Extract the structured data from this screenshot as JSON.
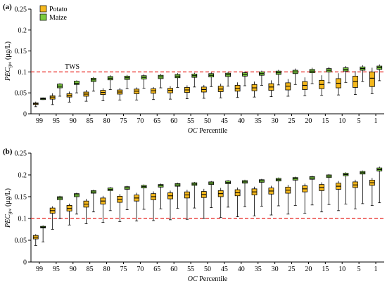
{
  "chart_data": [
    {
      "type": "box",
      "panel_label": "(a)",
      "ylabel_main": "PEC",
      "ylabel_sub": "gw",
      "ylabel_unit": "(μg/L)",
      "xlabel_main": "OC",
      "xlabel_rest": " Percentile",
      "ylim": [
        0,
        0.25
      ],
      "yticks": [
        "0",
        "0.05",
        "0.1",
        "0.15",
        "0.2",
        "0.25"
      ],
      "ytick_values": [
        0,
        0.05,
        0.1,
        0.15,
        0.2,
        0.25
      ],
      "categories": [
        "99",
        "95",
        "90",
        "85",
        "80",
        "75",
        "70",
        "65",
        "60",
        "55",
        "50",
        "45",
        "40",
        "35",
        "30",
        "25",
        "20",
        "15",
        "10",
        "5",
        "1"
      ],
      "threshold": {
        "value": 0.1,
        "label": "TWS",
        "color": "#e8231f"
      },
      "legend": {
        "position": "top-left"
      },
      "series": [
        {
          "name": "Potato",
          "color": "#f5b81c",
          "boxes": [
            [
              0.017,
              0.022,
              0.024,
              0.026,
              0.029
            ],
            [
              0.022,
              0.035,
              0.04,
              0.043,
              0.049
            ],
            [
              0.028,
              0.04,
              0.044,
              0.048,
              0.053
            ],
            [
              0.03,
              0.042,
              0.047,
              0.052,
              0.057
            ],
            [
              0.031,
              0.046,
              0.051,
              0.056,
              0.061
            ],
            [
              0.033,
              0.047,
              0.052,
              0.057,
              0.062
            ],
            [
              0.033,
              0.048,
              0.054,
              0.059,
              0.063
            ],
            [
              0.034,
              0.049,
              0.055,
              0.06,
              0.064
            ],
            [
              0.035,
              0.05,
              0.056,
              0.061,
              0.066
            ],
            [
              0.036,
              0.051,
              0.057,
              0.063,
              0.068
            ],
            [
              0.037,
              0.052,
              0.058,
              0.064,
              0.069
            ],
            [
              0.038,
              0.053,
              0.059,
              0.066,
              0.072
            ],
            [
              0.039,
              0.054,
              0.061,
              0.068,
              0.075
            ],
            [
              0.04,
              0.055,
              0.062,
              0.07,
              0.077
            ],
            [
              0.041,
              0.056,
              0.064,
              0.072,
              0.08
            ],
            [
              0.042,
              0.057,
              0.066,
              0.074,
              0.083
            ],
            [
              0.043,
              0.058,
              0.068,
              0.077,
              0.087
            ],
            [
              0.044,
              0.06,
              0.07,
              0.08,
              0.092
            ],
            [
              0.045,
              0.062,
              0.073,
              0.084,
              0.097
            ],
            [
              0.046,
              0.063,
              0.077,
              0.09,
              0.102
            ],
            [
              0.048,
              0.065,
              0.085,
              0.1,
              0.11
            ]
          ]
        },
        {
          "name": "Maize",
          "color": "#7ccb3f",
          "boxes": [
            [
              0.034,
              0.034,
              0.036,
              0.038,
              0.039
            ],
            [
              0.042,
              0.062,
              0.066,
              0.071,
              0.073
            ],
            [
              0.05,
              0.07,
              0.073,
              0.078,
              0.08
            ],
            [
              0.054,
              0.077,
              0.081,
              0.085,
              0.088
            ],
            [
              0.058,
              0.081,
              0.085,
              0.089,
              0.092
            ],
            [
              0.06,
              0.082,
              0.086,
              0.09,
              0.093
            ],
            [
              0.061,
              0.083,
              0.087,
              0.091,
              0.094
            ],
            [
              0.062,
              0.084,
              0.088,
              0.092,
              0.095
            ],
            [
              0.063,
              0.086,
              0.09,
              0.094,
              0.097
            ],
            [
              0.064,
              0.087,
              0.091,
              0.095,
              0.098
            ],
            [
              0.065,
              0.088,
              0.092,
              0.096,
              0.099
            ],
            [
              0.066,
              0.089,
              0.093,
              0.097,
              0.1
            ],
            [
              0.067,
              0.09,
              0.094,
              0.098,
              0.101
            ],
            [
              0.068,
              0.092,
              0.096,
              0.1,
              0.103
            ],
            [
              0.069,
              0.094,
              0.098,
              0.102,
              0.105
            ],
            [
              0.07,
              0.096,
              0.1,
              0.104,
              0.108
            ],
            [
              0.072,
              0.098,
              0.102,
              0.106,
              0.11
            ],
            [
              0.074,
              0.1,
              0.104,
              0.108,
              0.112
            ],
            [
              0.075,
              0.102,
              0.106,
              0.11,
              0.114
            ],
            [
              0.077,
              0.104,
              0.108,
              0.112,
              0.116
            ],
            [
              0.079,
              0.106,
              0.11,
              0.114,
              0.118
            ]
          ]
        }
      ]
    },
    {
      "type": "box",
      "panel_label": "(b)",
      "ylabel_main": "PEC",
      "ylabel_sub": "gw",
      "ylabel_unit": "(μg/L)",
      "xlabel_main": "OC",
      "xlabel_rest": " Percentile",
      "ylim": [
        0,
        0.25
      ],
      "yticks": [
        "0",
        "0.05",
        "0.1",
        "0.15",
        "0.2",
        "0.25"
      ],
      "ytick_values": [
        0,
        0.05,
        0.1,
        0.15,
        0.2,
        0.25
      ],
      "categories": [
        "99",
        "95",
        "90",
        "85",
        "80",
        "75",
        "70",
        "65",
        "60",
        "55",
        "50",
        "45",
        "40",
        "35",
        "30",
        "25",
        "20",
        "15",
        "10",
        "5",
        "1"
      ],
      "threshold": {
        "value": 0.1,
        "color": "#e8231f"
      },
      "series": [
        {
          "name": "Potato",
          "color": "#f5b81c",
          "boxes": [
            [
              0.038,
              0.053,
              0.057,
              0.061,
              0.064
            ],
            [
              0.075,
              0.112,
              0.118,
              0.124,
              0.128
            ],
            [
              0.085,
              0.117,
              0.123,
              0.13,
              0.134
            ],
            [
              0.088,
              0.126,
              0.133,
              0.14,
              0.145
            ],
            [
              0.091,
              0.133,
              0.14,
              0.147,
              0.152
            ],
            [
              0.093,
              0.137,
              0.144,
              0.151,
              0.156
            ],
            [
              0.094,
              0.14,
              0.147,
              0.154,
              0.159
            ],
            [
              0.095,
              0.143,
              0.15,
              0.157,
              0.162
            ],
            [
              0.097,
              0.145,
              0.152,
              0.159,
              0.164
            ],
            [
              0.098,
              0.147,
              0.154,
              0.161,
              0.166
            ],
            [
              0.1,
              0.148,
              0.155,
              0.162,
              0.168
            ],
            [
              0.102,
              0.15,
              0.157,
              0.164,
              0.17
            ],
            [
              0.104,
              0.152,
              0.159,
              0.166,
              0.171
            ],
            [
              0.106,
              0.154,
              0.161,
              0.168,
              0.173
            ],
            [
              0.108,
              0.156,
              0.163,
              0.17,
              0.175
            ],
            [
              0.11,
              0.158,
              0.165,
              0.172,
              0.177
            ],
            [
              0.112,
              0.161,
              0.168,
              0.175,
              0.18
            ],
            [
              0.115,
              0.164,
              0.171,
              0.178,
              0.183
            ],
            [
              0.118,
              0.167,
              0.174,
              0.181,
              0.186
            ],
            [
              0.122,
              0.171,
              0.177,
              0.184,
              0.189
            ],
            [
              0.13,
              0.176,
              0.182,
              0.188,
              0.193
            ]
          ]
        },
        {
          "name": "Maize",
          "color": "#7ccb3f",
          "boxes": [
            [
              0.046,
              0.078,
              0.08,
              0.082,
              0.084
            ],
            [
              0.1,
              0.143,
              0.147,
              0.15,
              0.152
            ],
            [
              0.11,
              0.15,
              0.154,
              0.157,
              0.159
            ],
            [
              0.115,
              0.158,
              0.161,
              0.164,
              0.166
            ],
            [
              0.118,
              0.164,
              0.167,
              0.17,
              0.172
            ],
            [
              0.12,
              0.167,
              0.17,
              0.173,
              0.175
            ],
            [
              0.121,
              0.17,
              0.173,
              0.176,
              0.178
            ],
            [
              0.122,
              0.172,
              0.175,
              0.178,
              0.18
            ],
            [
              0.123,
              0.174,
              0.177,
              0.18,
              0.182
            ],
            [
              0.124,
              0.176,
              0.179,
              0.182,
              0.184
            ],
            [
              0.125,
              0.178,
              0.181,
              0.184,
              0.186
            ],
            [
              0.126,
              0.18,
              0.183,
              0.186,
              0.188
            ],
            [
              0.127,
              0.181,
              0.184,
              0.187,
              0.189
            ],
            [
              0.128,
              0.183,
              0.186,
              0.189,
              0.191
            ],
            [
              0.129,
              0.186,
              0.189,
              0.192,
              0.194
            ],
            [
              0.13,
              0.188,
              0.191,
              0.194,
              0.196
            ],
            [
              0.131,
              0.19,
              0.193,
              0.196,
              0.198
            ],
            [
              0.132,
              0.194,
              0.197,
              0.2,
              0.202
            ],
            [
              0.133,
              0.198,
              0.201,
              0.204,
              0.206
            ],
            [
              0.134,
              0.202,
              0.205,
              0.208,
              0.21
            ],
            [
              0.136,
              0.209,
              0.212,
              0.216,
              0.219
            ]
          ]
        }
      ]
    }
  ]
}
